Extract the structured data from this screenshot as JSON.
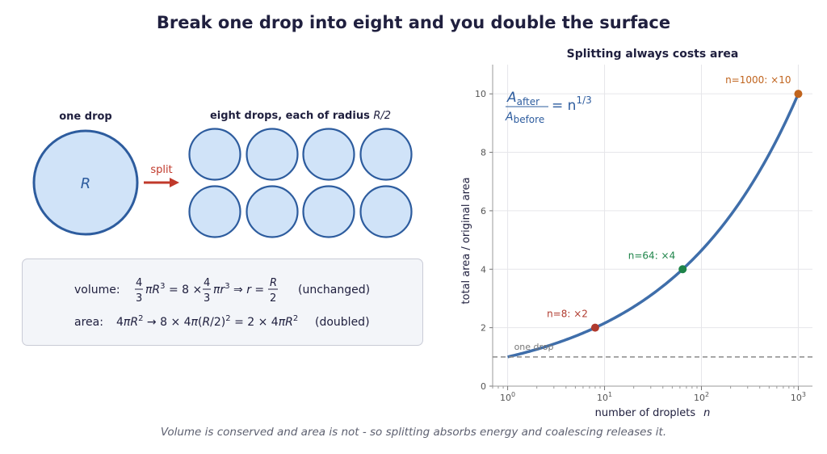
{
  "page": {
    "title": "Break one drop into eight and you double the surface",
    "caption": "Volume is conserved and area is not - so splitting absorbs energy and coalescing releases it."
  },
  "diagram": {
    "one_drop_label": "one drop",
    "radius_symbol": "R",
    "arrow_label": "split",
    "eight_drops_label_prefix": "eight drops, each of radius ",
    "eight_drops_label_radius": "R/2",
    "volume_text": "volume:",
    "volume_tag": "(unchanged)",
    "area_text": "area:",
    "area_tag": "(doubled)",
    "colors": {
      "drop_fill": "#d0e3f8",
      "drop_stroke": "#2d5c9e",
      "arrow": "#c0392b"
    }
  },
  "chart_data": {
    "type": "line",
    "title": "Splitting always costs area",
    "xlabel": "number of droplets",
    "xlabel_symbol": "n",
    "ylabel": "total area  /  original area",
    "x_scale": "log",
    "xlim": [
      0.7,
      1400
    ],
    "ylim": [
      0,
      11
    ],
    "x_ticks": [
      {
        "value": 1,
        "label": "10^0"
      },
      {
        "value": 10,
        "label": "10^1"
      },
      {
        "value": 100,
        "label": "10^2"
      },
      {
        "value": 1000,
        "label": "10^3"
      }
    ],
    "y_ticks": [
      0,
      2,
      4,
      6,
      8,
      10
    ],
    "grid": true,
    "curve": {
      "formula": "A_after / A_before = n^(1/3)",
      "x_min": 1,
      "x_max": 1000,
      "color": "#3f6eaa"
    },
    "formula_label": {
      "numerator": "A",
      "numerator_sub": "after",
      "denominator": "A",
      "denominator_sub": "before",
      "rhs": "= n",
      "exponent": "1/3"
    },
    "baseline": {
      "y": 1,
      "label": "one drop",
      "color": "#8a8a8a"
    },
    "points": [
      {
        "n": 8,
        "y": 2,
        "label": "n=8: ×2",
        "color": "#b03a2e"
      },
      {
        "n": 64,
        "y": 4,
        "label": "n=64: ×4",
        "color": "#1e8449"
      },
      {
        "n": 1000,
        "y": 10,
        "label": "n=1000: ×10",
        "color": "#c0641e"
      }
    ]
  }
}
